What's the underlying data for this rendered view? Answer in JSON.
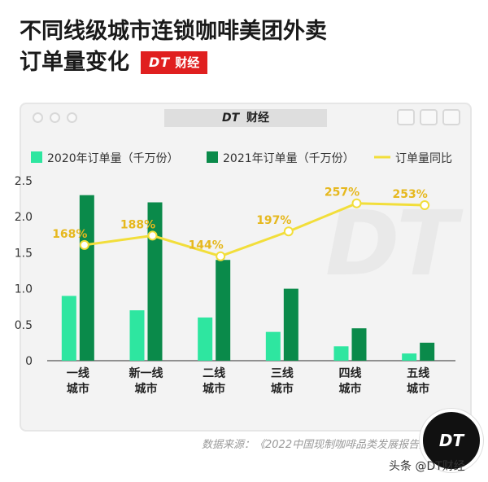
{
  "header": {
    "title_line1": "不同线级城市连锁咖啡美团外卖",
    "title_line2": "订单量变化",
    "badge_dt": "DT",
    "badge_text": "财经"
  },
  "window": {
    "title_dt": "DT",
    "title_text": "财经"
  },
  "watermark": "DT",
  "chart_data": {
    "type": "bar",
    "categories": [
      "一线\n城市",
      "新一线\n城市",
      "二线\n城市",
      "三线\n城市",
      "四线\n城市",
      "五线\n城市"
    ],
    "series": [
      {
        "name": "2020年订单量（千万份）",
        "type": "bar",
        "color": "#2ee6a0",
        "values": [
          0.9,
          0.7,
          0.6,
          0.4,
          0.2,
          0.1
        ]
      },
      {
        "name": "2021年订单量（千万份）",
        "type": "bar",
        "color": "#0a8a4a",
        "values": [
          2.3,
          2.2,
          1.4,
          1.0,
          0.45,
          0.25
        ]
      },
      {
        "name": "订单量同比",
        "type": "line",
        "color": "#f2de3a",
        "values": [
          168,
          188,
          144,
          197,
          257,
          253
        ],
        "labels": [
          "168%",
          "188%",
          "144%",
          "197%",
          "257%",
          "253%"
        ]
      }
    ],
    "ylim": [
      0,
      2.5
    ],
    "yticks": [
      "0",
      "0.5",
      "1.0",
      "1.5",
      "2.0",
      "2.5"
    ],
    "legend_position": "top"
  },
  "source": "数据来源：《2022中国现制咖啡品类发展报告》",
  "footer": "头条 @DT财经",
  "logo": "DT"
}
